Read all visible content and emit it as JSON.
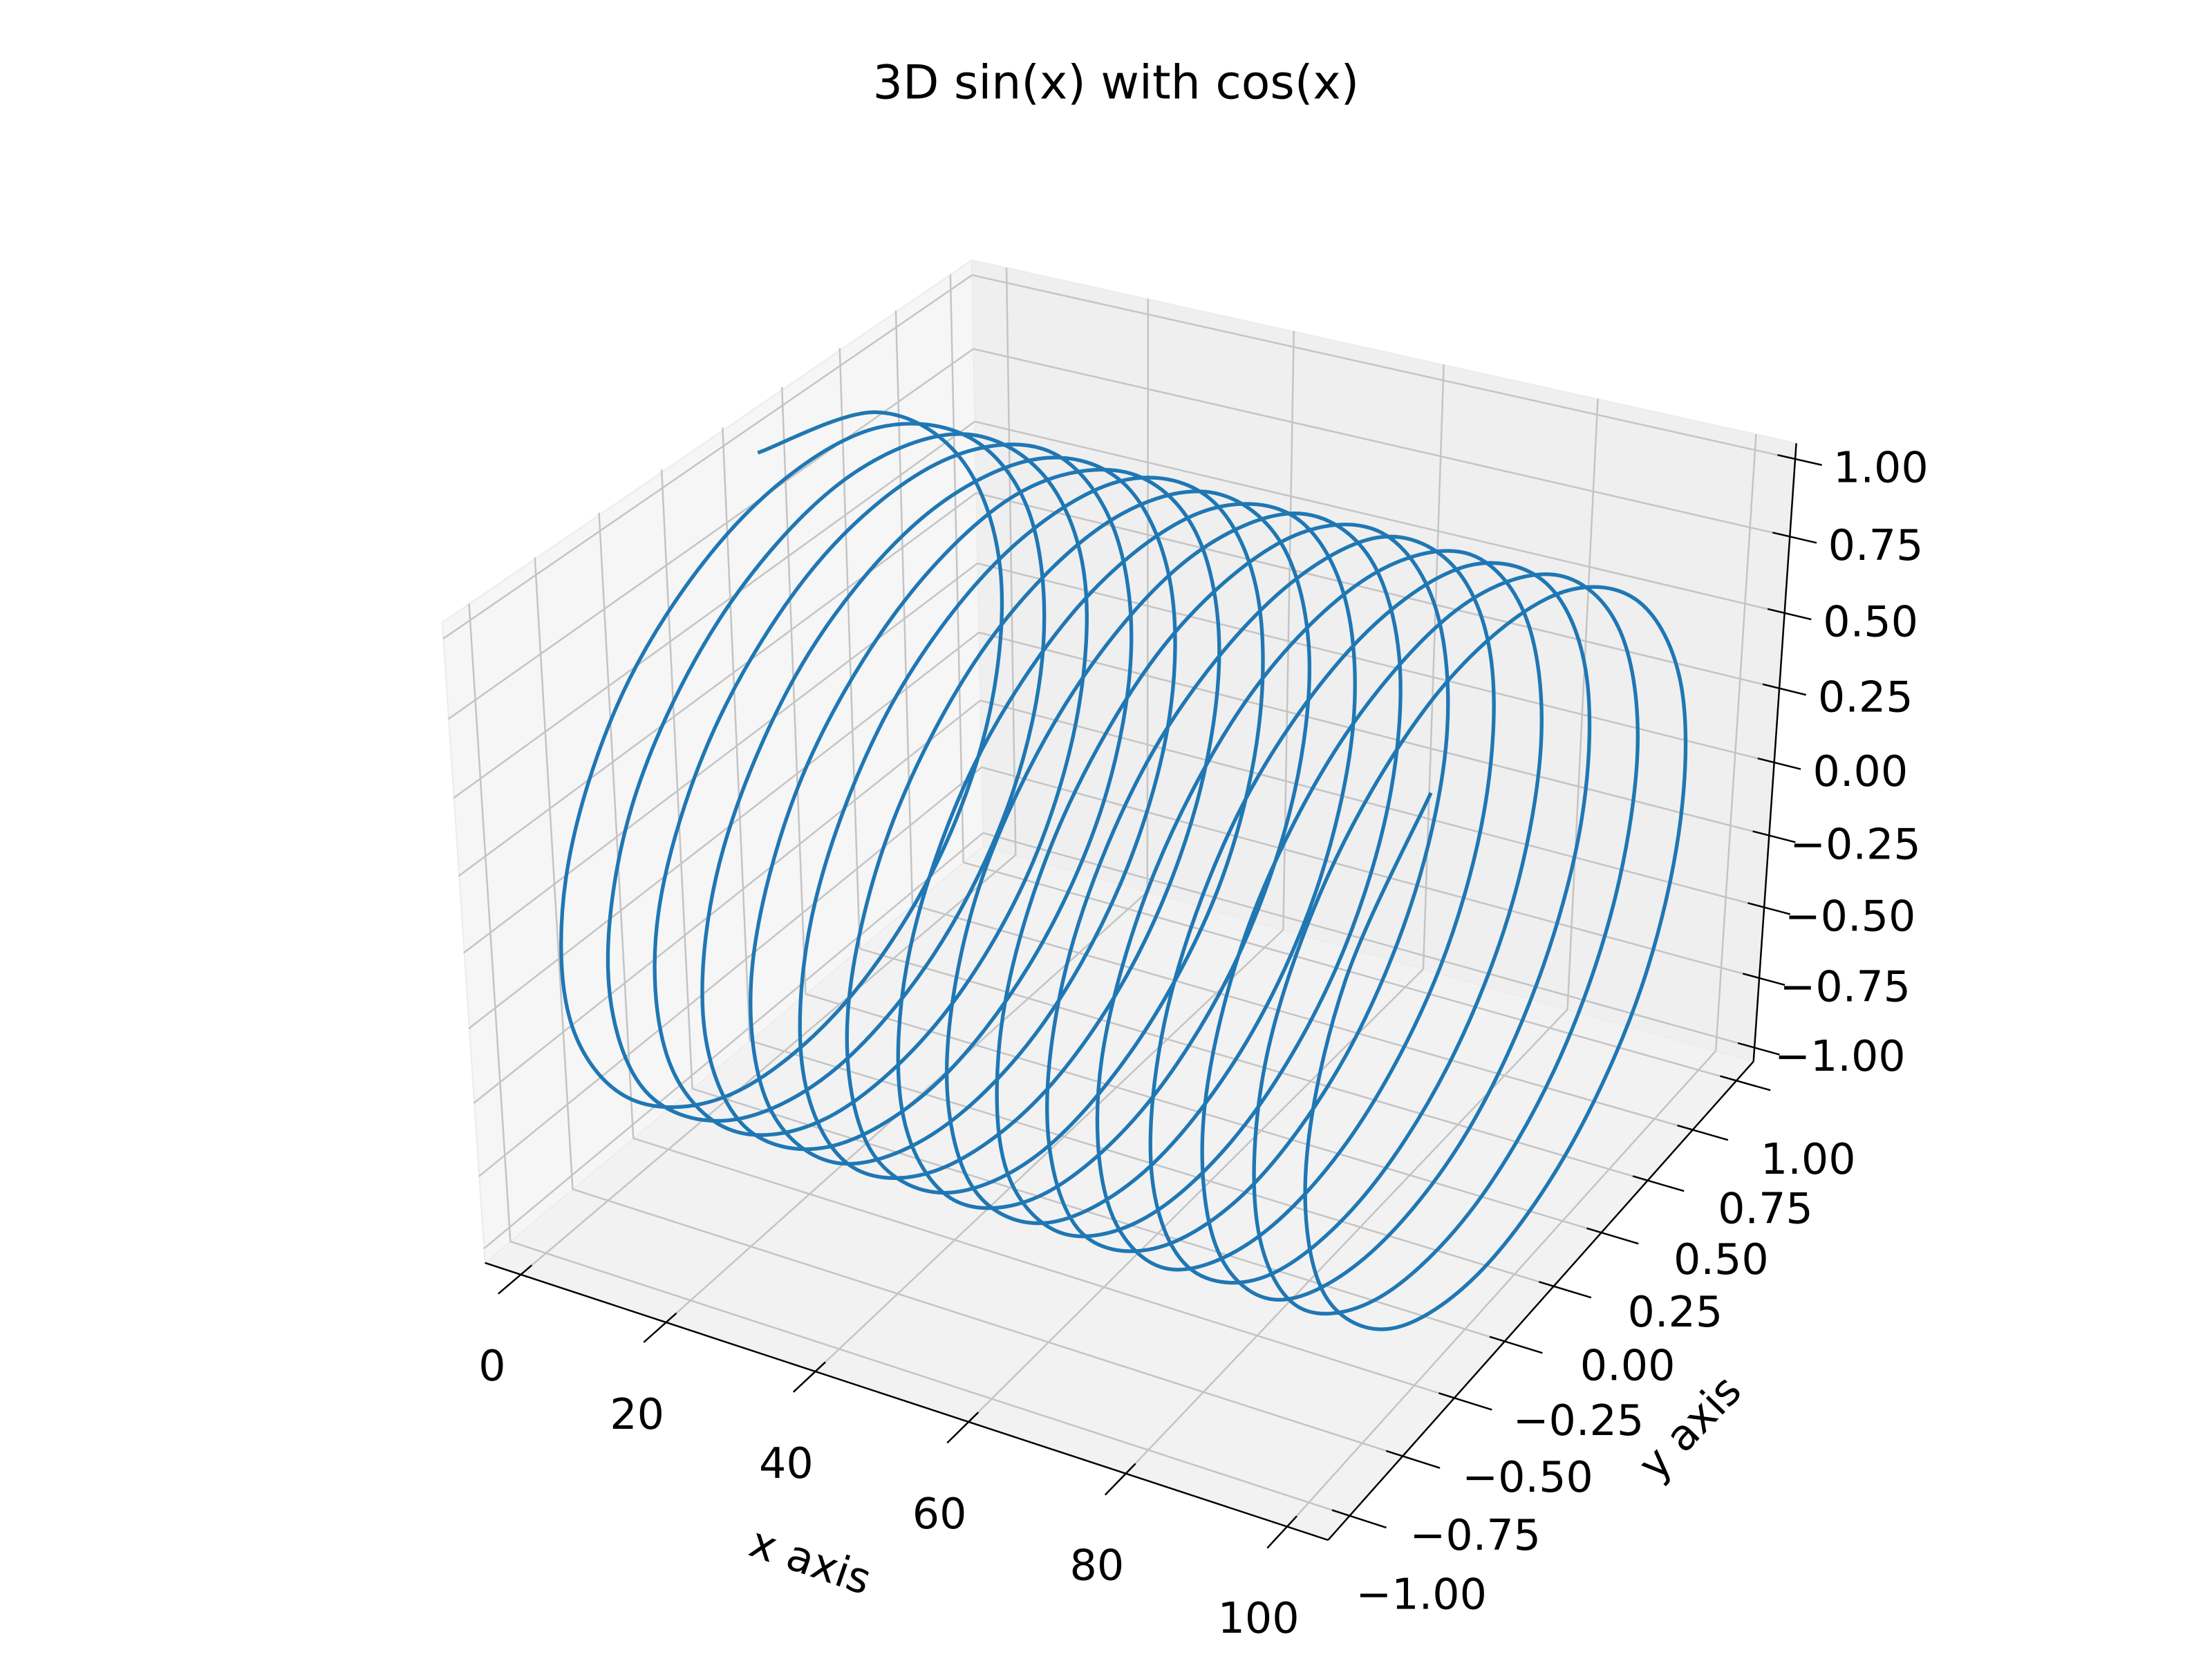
{
  "chart_data": {
    "type": "line3d",
    "title": "3D sin(x) with cos(x)",
    "xlabel": "x axis",
    "ylabel": "y axis",
    "color": "#1f77b4",
    "grid": true,
    "xlim": [
      -5,
      105
    ],
    "ylim": [
      -1.1,
      1.1
    ],
    "zlim": [
      -1.05,
      1.05
    ],
    "xticks": [
      0,
      20,
      40,
      60,
      80,
      100
    ],
    "yticks": [
      {
        "value": -1,
        "label": "−1.00"
      },
      {
        "value": -0.75,
        "label": "−0.75"
      },
      {
        "value": -0.5,
        "label": "−0.50"
      },
      {
        "value": -0.25,
        "label": "−0.25"
      },
      {
        "value": 0,
        "label": "0.00"
      },
      {
        "value": 0.25,
        "label": "0.25"
      },
      {
        "value": 0.5,
        "label": "0.50"
      },
      {
        "value": 0.75,
        "label": "0.75"
      },
      {
        "value": 1,
        "label": "1.00"
      }
    ],
    "zticks": [
      {
        "value": -1,
        "label": "−1.00"
      },
      {
        "value": -0.75,
        "label": "−0.75"
      },
      {
        "value": -0.5,
        "label": "−0.50"
      },
      {
        "value": -0.25,
        "label": "−0.25"
      },
      {
        "value": 0,
        "label": "0.00"
      },
      {
        "value": 0.25,
        "label": "0.25"
      },
      {
        "value": 0.5,
        "label": "0.50"
      },
      {
        "value": 0.75,
        "label": "0.75"
      },
      {
        "value": 1,
        "label": "1.00"
      }
    ],
    "x": [
      0,
      0.5,
      1,
      1.5,
      2,
      2.5,
      3,
      3.5,
      4,
      4.5,
      5,
      5.5,
      6,
      6.5,
      7,
      7.5,
      8,
      8.5,
      9,
      9.5,
      10,
      10.5,
      11,
      11.5,
      12,
      12.5,
      13,
      13.5,
      14,
      14.5,
      15,
      15.5,
      16,
      16.5,
      17,
      17.5,
      18,
      18.5,
      19,
      19.5,
      20,
      20.5,
      21,
      21.5,
      22,
      22.5,
      23,
      23.5,
      24,
      24.5,
      25,
      25.5,
      26,
      26.5,
      27,
      27.5,
      28,
      28.5,
      29,
      29.5,
      30,
      30.5,
      31,
      31.5,
      32,
      32.5,
      33,
      33.5,
      34,
      34.5,
      35,
      35.5,
      36,
      36.5,
      37,
      37.5,
      38,
      38.5,
      39,
      39.5,
      40,
      40.5,
      41,
      41.5,
      42,
      42.5,
      43,
      43.5,
      44,
      44.5,
      45,
      45.5,
      46,
      46.5,
      47,
      47.5,
      48,
      48.5,
      49,
      49.5,
      50,
      50.5,
      51,
      51.5,
      52,
      52.5,
      53,
      53.5,
      54,
      54.5,
      55,
      55.5,
      56,
      56.5,
      57,
      57.5,
      58,
      58.5,
      59,
      59.5,
      60,
      60.5,
      61,
      61.5,
      62,
      62.5,
      63,
      63.5,
      64,
      64.5,
      65,
      65.5,
      66,
      66.5,
      67,
      67.5,
      68,
      68.5,
      69,
      69.5,
      70,
      70.5,
      71,
      71.5,
      72,
      72.5,
      73,
      73.5,
      74,
      74.5,
      75,
      75.5,
      76,
      76.5,
      77,
      77.5,
      78,
      78.5,
      79,
      79.5,
      80,
      80.5,
      81,
      81.5,
      82,
      82.5,
      83,
      83.5,
      84,
      84.5,
      85,
      85.5,
      86,
      86.5,
      87,
      87.5,
      88,
      88.5,
      89,
      89.5,
      90,
      90.5,
      91,
      91.5,
      92,
      92.5,
      93,
      93.5,
      94,
      94.5,
      95,
      95.5,
      96,
      96.5,
      97,
      97.5,
      98,
      98.5,
      99,
      99.5,
      100
    ],
    "y": [
      0,
      0.48,
      0.84,
      1.0,
      0.91,
      0.6,
      0.14,
      -0.35,
      -0.76,
      -0.98,
      -0.96,
      -0.71,
      -0.28,
      0.22,
      0.66,
      0.94,
      0.99,
      0.8,
      0.41,
      -0.08,
      -0.54,
      -0.88,
      -1.0,
      -0.88,
      -0.54,
      -0.07,
      0.42,
      0.8,
      0.99,
      0.93,
      0.65,
      0.21,
      -0.29,
      -0.71,
      -0.96,
      -0.98,
      -0.75,
      -0.34,
      0.15,
      0.61,
      0.91,
      1.0,
      0.84,
      0.47,
      -0.01,
      -0.49,
      -0.85,
      -1.0,
      -0.91,
      -0.59,
      -0.13,
      0.36,
      0.76,
      0.98,
      0.96,
      0.7,
      0.27,
      -0.22,
      -0.66,
      -0.94,
      -0.99,
      -0.79,
      -0.4,
      0.08,
      0.55,
      0.88,
      1.0,
      0.87,
      0.53,
      0.06,
      -0.43,
      -0.81,
      -0.99,
      -0.93,
      -0.64,
      -0.2,
      0.3,
      0.72,
      0.96,
      0.97,
      0.75,
      0.33,
      -0.16,
      -0.61,
      -0.92,
      -1.0,
      -0.83,
      -0.46,
      0.02,
      0.49,
      0.85,
      1.0,
      0.9,
      0.58,
      0.12,
      -0.37,
      -0.77,
      -0.98,
      -0.95,
      -0.69,
      -0.26,
      0.23,
      0.67,
      0.94,
      0.99,
      0.79,
      0.4,
      -0.09,
      -0.56,
      -0.89,
      -1.0,
      -0.87,
      -0.52,
      -0.05,
      0.44,
      0.81,
      0.99,
      0.93,
      0.64,
      0.19,
      -0.3,
      -0.72,
      -0.97,
      -0.97,
      -0.74,
      -0.33,
      0.17,
      0.62,
      0.92,
      1.0,
      0.83,
      0.46,
      -0.03,
      -0.5,
      -0.86,
      -1.0,
      -0.9,
      -0.58,
      -0.11,
      0.38,
      0.77,
      0.98,
      0.95,
      0.69,
      0.25,
      -0.24,
      -0.68,
      -0.95,
      -0.99,
      -0.78,
      -0.39,
      0.1,
      0.57,
      0.89,
      1.0,
      0.86,
      0.51,
      0.04,
      -0.44,
      -0.82,
      -0.99,
      -0.92,
      -0.63,
      -0.18,
      0.31,
      0.73,
      0.97,
      0.97,
      0.73,
      0.32,
      -0.18,
      -0.63,
      -0.92,
      -0.99,
      -0.82,
      -0.45,
      0.04,
      0.51,
      0.86,
      1.0,
      0.89,
      0.57,
      0.11,
      -0.38,
      -0.78,
      -0.98,
      -0.95,
      -0.68,
      -0.25,
      0.25,
      0.68,
      0.95,
      0.98,
      0.78,
      0.38,
      -0.11,
      -0.57,
      -0.9,
      -1.0,
      -0.86,
      -0.51
    ],
    "z": [
      1,
      0.88,
      0.54,
      0.07,
      -0.42,
      -0.8,
      -0.99,
      -0.94,
      -0.65,
      -0.21,
      0.28,
      0.71,
      0.96,
      0.98,
      0.75,
      0.35,
      -0.15,
      -0.6,
      -0.91,
      -1.0,
      -0.84,
      -0.48,
      0,
      0.48,
      0.84,
      1.0,
      0.91,
      0.59,
      0.14,
      -0.35,
      -0.76,
      -0.98,
      -0.96,
      -0.7,
      -0.27,
      0.22,
      0.66,
      0.94,
      0.99,
      0.8,
      0.41,
      -0.08,
      -0.55,
      -0.88,
      -1.0,
      -0.87,
      -0.53,
      -0.06,
      0.42,
      0.81,
      0.99,
      0.93,
      0.65,
      0.2,
      -0.29,
      -0.71,
      -0.96,
      -0.97,
      -0.75,
      -0.34,
      0.15,
      0.61,
      0.91,
      1.0,
      0.83,
      0.47,
      -0.01,
      -0.49,
      -0.85,
      -1.0,
      -0.9,
      -0.59,
      -0.13,
      0.36,
      0.77,
      0.98,
      0.96,
      0.7,
      0.27,
      -0.23,
      -0.67,
      -0.94,
      -0.99,
      -0.79,
      -0.4,
      0.09,
      0.56,
      0.89,
      1.0,
      0.87,
      0.52,
      0.05,
      -0.43,
      -0.81,
      -0.99,
      -0.93,
      -0.64,
      -0.19,
      0.3,
      0.72,
      0.96,
      0.97,
      0.74,
      0.33,
      -0.16,
      -0.62,
      -0.92,
      -1.0,
      -0.83,
      -0.46,
      0.02,
      0.5,
      0.85,
      1.0,
      0.9,
      0.58,
      0.12,
      -0.37,
      -0.77,
      -0.98,
      -0.95,
      -0.69,
      -0.26,
      0.24,
      0.67,
      0.95,
      0.99,
      0.79,
      0.39,
      -0.1,
      -0.56,
      -0.89,
      -1.0,
      -0.86,
      -0.52,
      -0.04,
      0.44,
      0.82,
      0.99,
      0.93,
      0.63,
      0.19,
      -0.31,
      -0.73,
      -0.97,
      -0.97,
      -0.74,
      -0.32,
      0.17,
      0.62,
      0.92,
      0.99,
      0.82,
      0.45,
      -0.03,
      -0.51,
      -0.86,
      -1.0,
      -0.9,
      -0.57,
      -0.11,
      0.38,
      0.78,
      0.98,
      0.95,
      0.68,
      0.25,
      -0.25,
      -0.68,
      -0.95,
      -0.98,
      -0.78,
      -0.38,
      0.11,
      0.57,
      0.89,
      1.0,
      0.86,
      0.51,
      0.04,
      -0.45,
      -0.82,
      -0.99,
      -0.92,
      -0.63,
      -0.18,
      0.32,
      0.73,
      0.97,
      0.97,
      0.73,
      0.31,
      -0.18,
      -0.63,
      -0.92,
      -0.99,
      -0.82,
      -0.44,
      0.04,
      0.51,
      0.86
    ]
  }
}
